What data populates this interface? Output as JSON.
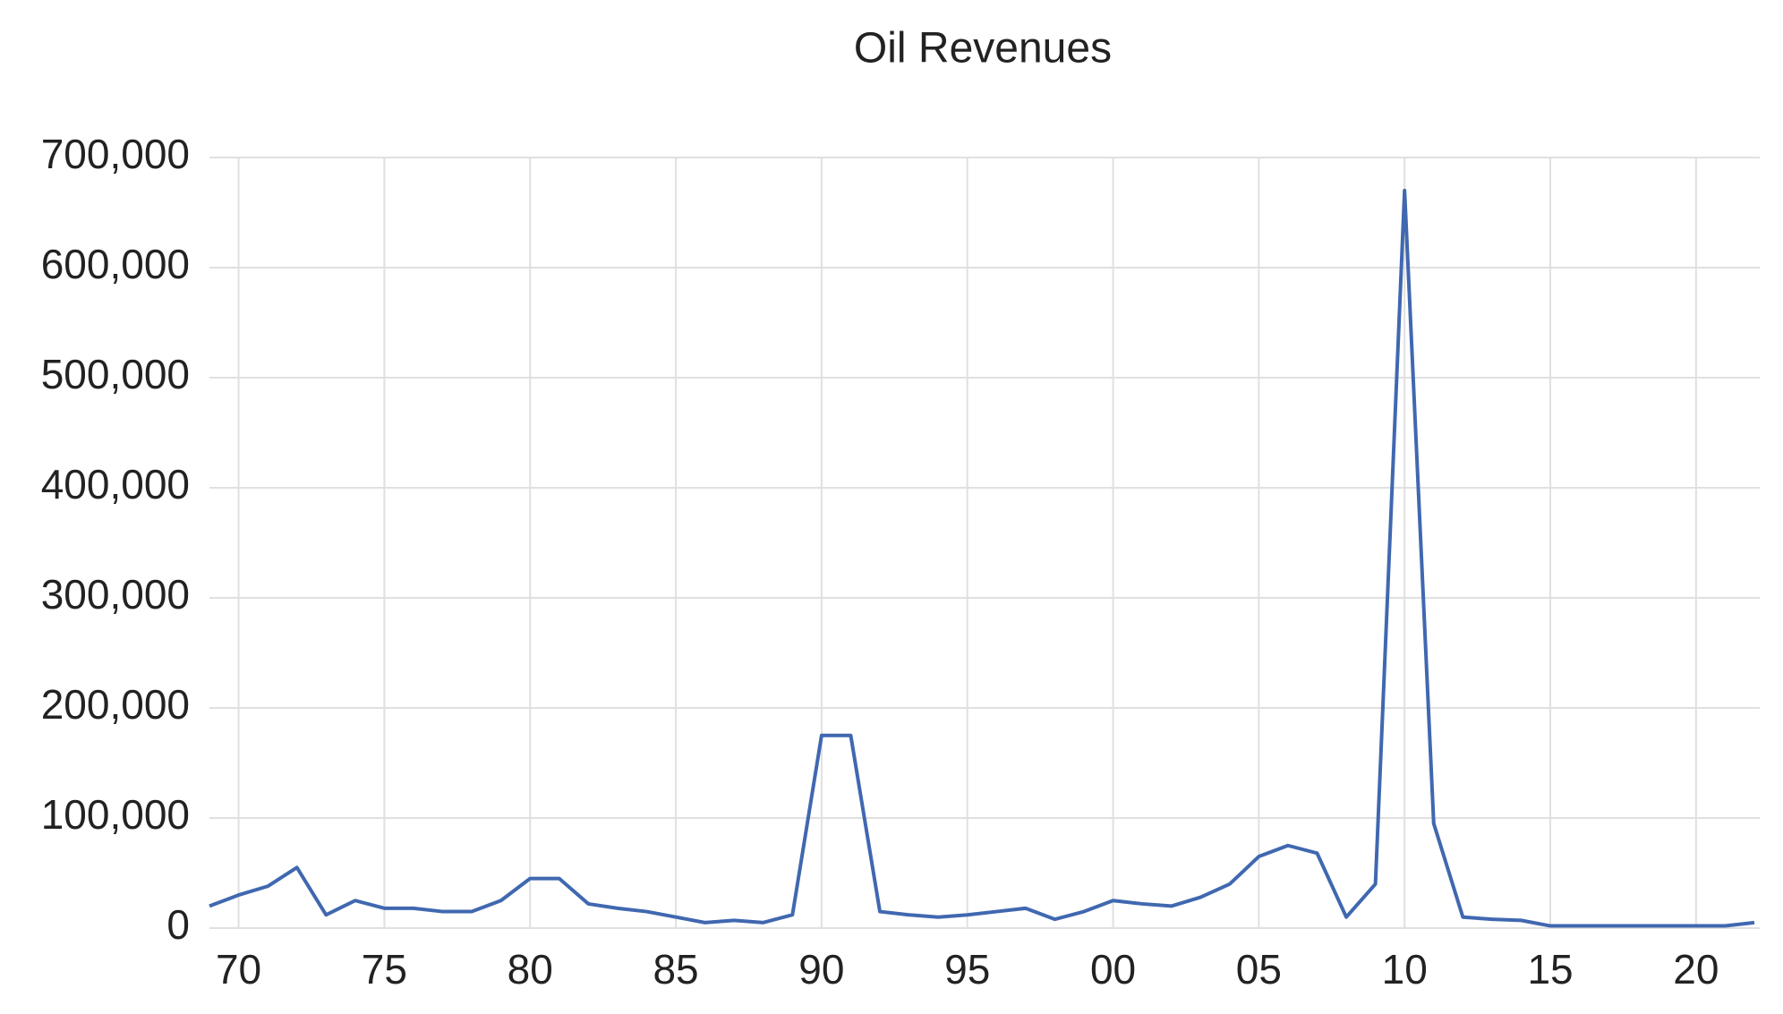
{
  "chart_data": {
    "type": "line",
    "title": "Oil Revenues",
    "x": [
      1969,
      1970,
      1971,
      1972,
      1973,
      1974,
      1975,
      1976,
      1977,
      1978,
      1979,
      1980,
      1981,
      1982,
      1983,
      1984,
      1985,
      1986,
      1987,
      1988,
      1989,
      1990,
      1991,
      1992,
      1993,
      1994,
      1995,
      1996,
      1997,
      1998,
      1999,
      2000,
      2001,
      2002,
      2003,
      2004,
      2005,
      2006,
      2007,
      2008,
      2009,
      2010,
      2011,
      2012,
      2013,
      2014,
      2015,
      2016,
      2017,
      2018,
      2019,
      2020,
      2021,
      2022
    ],
    "series": [
      {
        "name": "Oil Revenues",
        "color": "#4068b0",
        "values": [
          20000,
          30000,
          38000,
          55000,
          12000,
          25000,
          18000,
          18000,
          15000,
          15000,
          25000,
          45000,
          45000,
          22000,
          18000,
          15000,
          10000,
          5000,
          7000,
          5000,
          12000,
          175000,
          175000,
          15000,
          12000,
          10000,
          12000,
          15000,
          18000,
          8000,
          15000,
          25000,
          22000,
          20000,
          28000,
          40000,
          65000,
          75000,
          68000,
          10000,
          40000,
          670000,
          95000,
          10000,
          8000,
          7000,
          2000,
          2000,
          2000,
          2000,
          2000,
          2000,
          2000,
          5000
        ]
      }
    ],
    "xlim": [
      1969,
      2022
    ],
    "xticks": [
      {
        "value": 1970,
        "label": "70"
      },
      {
        "value": 1975,
        "label": "75"
      },
      {
        "value": 1980,
        "label": "80"
      },
      {
        "value": 1985,
        "label": "85"
      },
      {
        "value": 1990,
        "label": "90"
      },
      {
        "value": 1995,
        "label": "95"
      },
      {
        "value": 2000,
        "label": "00"
      },
      {
        "value": 2005,
        "label": "05"
      },
      {
        "value": 2010,
        "label": "10"
      },
      {
        "value": 2015,
        "label": "15"
      },
      {
        "value": 2020,
        "label": "20"
      }
    ],
    "ylim": [
      0,
      700000
    ],
    "yticks": [
      0,
      {
        "value": 100000,
        "label": "100,000"
      },
      {
        "value": 200000,
        "label": "200,000"
      },
      {
        "value": 300000,
        "label": "300,000"
      },
      {
        "value": 400000,
        "label": "400,000"
      },
      {
        "value": 500000,
        "label": "500,000"
      },
      {
        "value": 600000,
        "label": "600,000"
      },
      {
        "value": 700000,
        "label": "700,000"
      }
    ],
    "grid": true
  }
}
